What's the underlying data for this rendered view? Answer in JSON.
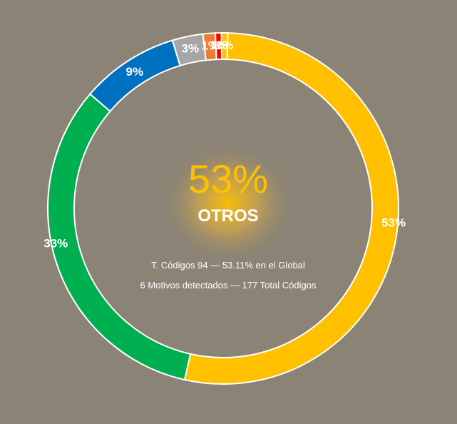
{
  "chart_data": {
    "type": "pie",
    "variant": "donut",
    "slices": [
      {
        "label": "53%",
        "value": 94,
        "color": "#ffc000"
      },
      {
        "label": "33%",
        "value": 58,
        "color": "#00b050"
      },
      {
        "label": "9%",
        "value": 16,
        "color": "#0070c0"
      },
      {
        "label": "3%",
        "value": 5,
        "color": "#a6a6a6"
      },
      {
        "label": "1%",
        "value": 2,
        "color": "#ed7d31"
      },
      {
        "label": "1%",
        "value": 1,
        "color": "#ff0000"
      },
      {
        "label": "1%",
        "value": 1,
        "color": "#ffc000"
      }
    ],
    "total": 177
  },
  "center": {
    "percent": "53%",
    "percent_color": "#ffc000",
    "title": "OTROS",
    "line1": "T. Códigos 94 — 53.11% en el Global",
    "line2": "6 Motivos detectados — 177 Total Códigos"
  },
  "colors": {
    "background": "#8b8375",
    "ring_stroke": "#ffffff",
    "glow": "#ffc000"
  }
}
